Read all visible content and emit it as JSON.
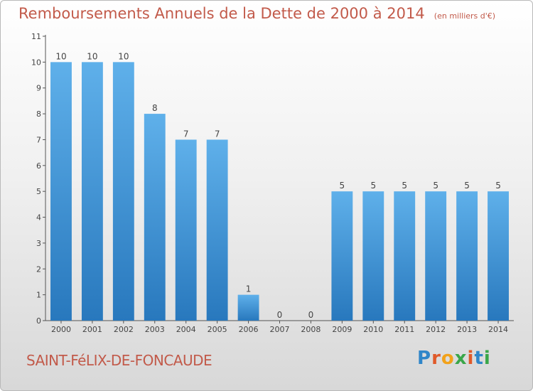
{
  "chart_data": {
    "type": "bar",
    "title": "Remboursements Annuels de la Dette de 2000 à 2014",
    "unit": "(en milliers d'€)",
    "categories": [
      "2000",
      "2001",
      "2002",
      "2003",
      "2004",
      "2005",
      "2006",
      "2007",
      "2008",
      "2009",
      "2010",
      "2011",
      "2012",
      "2013",
      "2014"
    ],
    "values": [
      10,
      10,
      10,
      8,
      7,
      7,
      1,
      0,
      0,
      5,
      5,
      5,
      5,
      5,
      5
    ],
    "data_labels": [
      "10",
      "10",
      "10",
      "8",
      "7",
      "7",
      "1",
      "0",
      "0",
      "5",
      "5",
      "5",
      "5",
      "5",
      "5"
    ],
    "ylim": [
      0,
      11
    ],
    "yticks": [
      0,
      1,
      2,
      3,
      4,
      5,
      6,
      7,
      8,
      9,
      10,
      11
    ],
    "grid": false,
    "colors": {
      "bar_top": "#5fb0ea",
      "bar_bottom": "#2878bd",
      "title": "#c25a4a",
      "axis": "#555555"
    }
  },
  "commune": "SAINT-FéLIX-DE-FONCAUDE",
  "logo": {
    "letters": [
      "P",
      "r",
      "o",
      "x",
      "i",
      "t",
      "i"
    ],
    "colors": [
      "#2f86c9",
      "#e05a2a",
      "#f2a21a",
      "#3aa649",
      "#e05a2a",
      "#2f86c9",
      "#3aa649"
    ]
  }
}
